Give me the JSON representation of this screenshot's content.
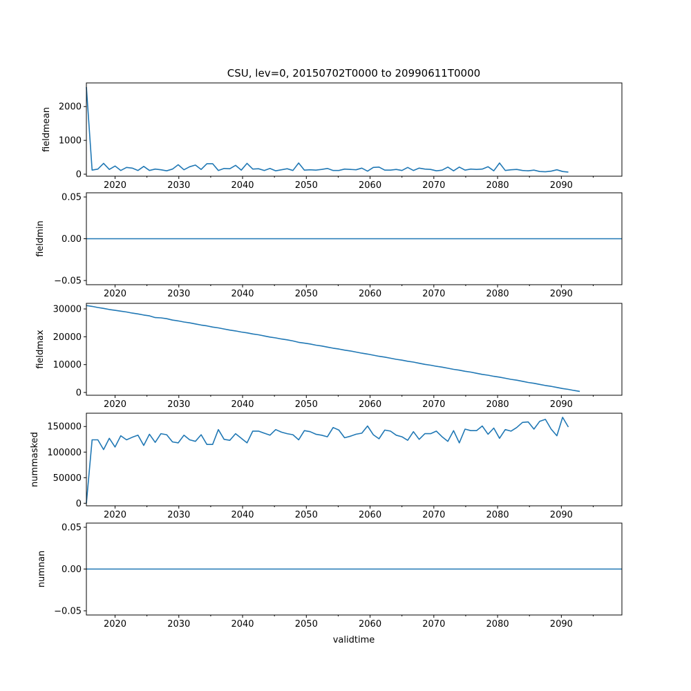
{
  "chart_data": {
    "type": "line",
    "title": "CSU, lev=0, 20150702T0000 to 20990611T0000",
    "xlabel": "validtime",
    "x_tick_labels": [
      "2020",
      "2030",
      "2040",
      "2050",
      "2060",
      "2070",
      "2080",
      "2090"
    ],
    "xlim": [
      2015.5,
      2099.5
    ],
    "x_start": 2015.5,
    "x_step": 0.9,
    "line_color": "#1f77b4",
    "grid": false,
    "panels": [
      {
        "ylabel": "fieldmean",
        "ylim": [
          -60,
          2700
        ],
        "y_ticks": [
          0,
          1000,
          2000
        ],
        "y_tick_labels": [
          "0",
          "1000",
          "2000"
        ],
        "values": [
          2580,
          120,
          150,
          320,
          140,
          240,
          110,
          200,
          180,
          110,
          230,
          110,
          150,
          130,
          100,
          150,
          280,
          130,
          220,
          270,
          140,
          310,
          310,
          110,
          170,
          160,
          260,
          120,
          320,
          150,
          160,
          110,
          170,
          100,
          130,
          160,
          110,
          330,
          120,
          130,
          120,
          140,
          170,
          110,
          110,
          150,
          140,
          130,
          180,
          90,
          200,
          210,
          120,
          120,
          140,
          110,
          200,
          110,
          180,
          150,
          140,
          100,
          120,
          210,
          100,
          210,
          120,
          150,
          140,
          150,
          220,
          100,
          330,
          110,
          130,
          140,
          110,
          100,
          120,
          80,
          70,
          90,
          130,
          80,
          60
        ]
      },
      {
        "ylabel": "fieldmin",
        "ylim": [
          -0.055,
          0.055
        ],
        "y_ticks": [
          -0.05,
          0,
          0.05
        ],
        "y_tick_labels": [
          "−0.05",
          "0.00",
          "0.05"
        ],
        "values": [
          0,
          0
        ]
      },
      {
        "ylabel": "fieldmax",
        "ylim": [
          -1000,
          32000
        ],
        "y_ticks": [
          0,
          10000,
          20000,
          30000
        ],
        "y_tick_labels": [
          "0",
          "10000",
          "20000",
          "30000"
        ],
        "values": [
          31200,
          30900,
          30500,
          30200,
          29800,
          29500,
          29200,
          28900,
          28500,
          28200,
          27800,
          27500,
          26900,
          26800,
          26500,
          26000,
          25700,
          25300,
          25000,
          24600,
          24200,
          23900,
          23500,
          23200,
          22800,
          22400,
          22100,
          21700,
          21400,
          21000,
          20700,
          20300,
          19900,
          19600,
          19200,
          18900,
          18500,
          18000,
          17700,
          17400,
          17000,
          16700,
          16300,
          15900,
          15600,
          15200,
          14900,
          14500,
          14100,
          13800,
          13400,
          13000,
          12700,
          12300,
          11900,
          11600,
          11200,
          10900,
          10500,
          10100,
          9800,
          9400,
          9100,
          8700,
          8300,
          8000,
          7600,
          7300,
          6900,
          6500,
          6200,
          5800,
          5500,
          5100,
          4700,
          4400,
          4000,
          3600,
          3300,
          2900,
          2500,
          2200,
          1800,
          1400,
          1100,
          700,
          400
        ]
      },
      {
        "ylabel": "nummasked",
        "ylim": [
          -5000,
          176000
        ],
        "y_ticks": [
          0,
          50000,
          100000,
          150000
        ],
        "y_tick_labels": [
          "0",
          "50000",
          "100000",
          "150000"
        ],
        "values": [
          0,
          124000,
          124000,
          105000,
          127000,
          110000,
          132000,
          124000,
          129000,
          133000,
          113000,
          135000,
          119000,
          136000,
          134000,
          120000,
          118000,
          133000,
          124000,
          121000,
          134000,
          115000,
          115000,
          144000,
          125000,
          123000,
          136000,
          127000,
          118000,
          141000,
          141000,
          137000,
          133000,
          144000,
          139000,
          136000,
          134000,
          124000,
          142000,
          140000,
          135000,
          133000,
          130000,
          148000,
          143000,
          128000,
          131000,
          135000,
          137000,
          151000,
          134000,
          126000,
          143000,
          141000,
          133000,
          130000,
          123000,
          140000,
          125000,
          136000,
          136000,
          141000,
          130000,
          121000,
          142000,
          118000,
          145000,
          142000,
          142000,
          151000,
          135000,
          147000,
          127000,
          144000,
          141000,
          148000,
          158000,
          159000,
          145000,
          160000,
          164000,
          145000,
          132000,
          168000,
          149000
        ]
      },
      {
        "ylabel": "numnan",
        "ylim": [
          -0.055,
          0.055
        ],
        "y_ticks": [
          -0.05,
          0,
          0.05
        ],
        "y_tick_labels": [
          "−0.05",
          "0.00",
          "0.05"
        ],
        "values": [
          0,
          0
        ]
      }
    ]
  }
}
